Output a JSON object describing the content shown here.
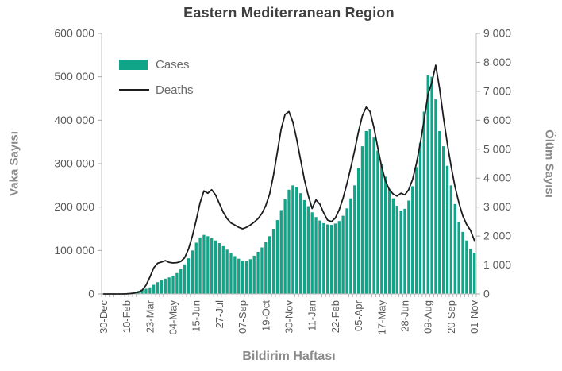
{
  "title": "Eastern Mediterranean Region",
  "legend": {
    "cases_label": "Cases",
    "deaths_label": "Deaths"
  },
  "axes": {
    "left_title": "Vaka Sayısı",
    "right_title": "Ölüm Sayısı",
    "x_title": "Bildirim Haftası",
    "left_tick_labels": [
      "0",
      "100 000",
      "200 000",
      "300 000",
      "400 000",
      "500 000",
      "600 000"
    ],
    "right_tick_labels": [
      "0",
      "1 000",
      "2 000",
      "3 000",
      "4 000",
      "5 000",
      "6 000",
      "7 000",
      "8 000",
      "9 000"
    ]
  },
  "colors": {
    "bars": "#10A589",
    "line": "#1c1c1c",
    "title_text": "#3f3f3f",
    "tick_text": "#595959",
    "axis_title_text": "#8a8a8a",
    "axis_line": "#bfbfbf",
    "tick_mark": "#a8a8a8",
    "legend_text": "#6b6b6b",
    "background": "#ffffff"
  },
  "chart_data": {
    "type": "bar",
    "subtype": "combo-bar-line",
    "title": "Eastern Mediterranean Region",
    "xlabel": "Bildirim Haftası",
    "ylabel_left": "Vaka Sayısı",
    "ylabel_right": "Ölüm Sayısı",
    "x_unit": "epidemiological week",
    "n_points": 97,
    "x_tick_every": 6,
    "x_tick_labels": [
      "30-Dec",
      "10-Feb",
      "23-Mar",
      "04-May",
      "15-Jun",
      "27-Jul",
      "07-Sep",
      "19-Oct",
      "30-Nov",
      "11-Jan",
      "22-Feb",
      "05-Apr",
      "17-May",
      "28-Jun",
      "09-Aug",
      "20-Sep",
      "01-Nov"
    ],
    "left_axis": {
      "min": 0,
      "max": 600000,
      "step": 100000
    },
    "right_axis": {
      "min": 0,
      "max": 9000,
      "step": 1000
    },
    "grid": false,
    "legend_position": "top-left-inside",
    "series": [
      {
        "name": "Cases",
        "type": "bar",
        "axis": "left",
        "color": "#10A589",
        "values": [
          0,
          0,
          0,
          0,
          0,
          0,
          1000,
          2000,
          4000,
          7000,
          10000,
          12000,
          15000,
          21000,
          27000,
          31000,
          35000,
          38000,
          42000,
          48000,
          57000,
          68000,
          82000,
          100000,
          118000,
          130000,
          136000,
          133000,
          128000,
          123000,
          117000,
          110000,
          102000,
          94000,
          87000,
          81000,
          77000,
          76000,
          80000,
          88000,
          97000,
          107000,
          119000,
          133000,
          150000,
          170000,
          193000,
          218000,
          240000,
          250000,
          246000,
          232000,
          216000,
          202000,
          188000,
          177000,
          169000,
          163000,
          160000,
          159000,
          162000,
          168000,
          180000,
          197000,
          220000,
          250000,
          290000,
          340000,
          375000,
          379000,
          360000,
          330000,
          300000,
          270000,
          242000,
          220000,
          203000,
          192000,
          196000,
          215000,
          248000,
          292000,
          348000,
          420000,
          503000,
          500000,
          448000,
          375000,
          340000,
          295000,
          250000,
          207000,
          165000,
          143000,
          123000,
          104000,
          95000
        ]
      },
      {
        "name": "Deaths",
        "type": "line",
        "axis": "right",
        "color": "#1c1c1c",
        "values": [
          0,
          0,
          0,
          0,
          0,
          0,
          5,
          15,
          30,
          60,
          130,
          300,
          580,
          900,
          1060,
          1100,
          1150,
          1090,
          1070,
          1080,
          1120,
          1250,
          1550,
          2000,
          2550,
          3150,
          3560,
          3480,
          3600,
          3420,
          3120,
          2820,
          2600,
          2450,
          2380,
          2300,
          2250,
          2300,
          2380,
          2480,
          2600,
          2780,
          3050,
          3450,
          4100,
          4900,
          5700,
          6200,
          6300,
          5950,
          5350,
          4650,
          3950,
          3400,
          2950,
          3250,
          3100,
          2800,
          2550,
          2500,
          2620,
          2900,
          3300,
          3800,
          4350,
          4950,
          5600,
          6150,
          6450,
          6300,
          5750,
          5050,
          4400,
          3900,
          3600,
          3450,
          3380,
          3480,
          3420,
          3600,
          3950,
          4500,
          5200,
          6000,
          6900,
          7300,
          7900,
          7100,
          6100,
          5200,
          4400,
          3700,
          3150,
          2700,
          2400,
          2200,
          1850
        ]
      }
    ]
  }
}
